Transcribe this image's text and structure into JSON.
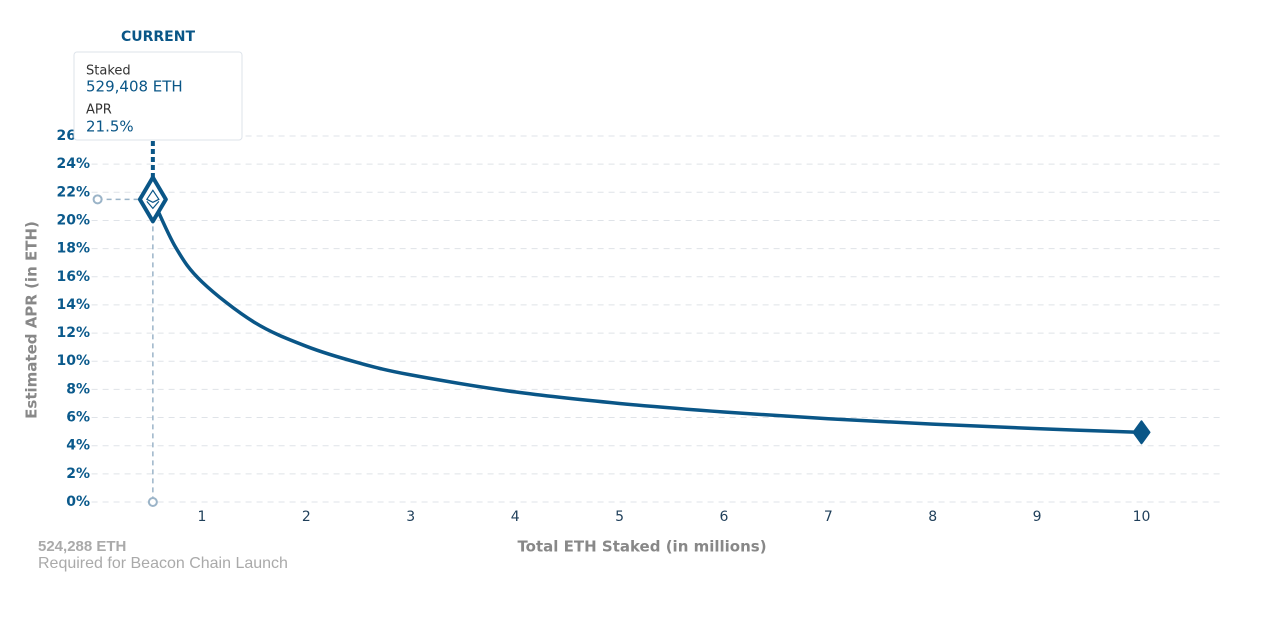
{
  "chart_data": {
    "type": "line",
    "x": [
      0.529408,
      0.75,
      1,
      1.5,
      2,
      2.5,
      3,
      4,
      5,
      6,
      7,
      8,
      9,
      10
    ],
    "values": [
      21.5,
      18.06,
      15.64,
      12.77,
      11.06,
      9.89,
      9.03,
      7.82,
      7.0,
      6.39,
      5.91,
      5.53,
      5.21,
      4.95
    ],
    "color": "#0a5687",
    "xlim": [
      0,
      10.8
    ],
    "xticks": [
      1,
      2,
      3,
      4,
      5,
      6,
      7,
      8,
      9,
      10
    ],
    "ylim": [
      0,
      26
    ],
    "yticks": [
      {
        "value": 0,
        "label": "0%"
      },
      {
        "value": 2,
        "label": "2%"
      },
      {
        "value": 4,
        "label": "4%"
      },
      {
        "value": 6,
        "label": "6%"
      },
      {
        "value": 8,
        "label": "8%"
      },
      {
        "value": 10,
        "label": "10%"
      },
      {
        "value": 12,
        "label": "12%"
      },
      {
        "value": 14,
        "label": "14%"
      },
      {
        "value": 16,
        "label": "16%"
      },
      {
        "value": 18,
        "label": "18%"
      },
      {
        "value": 20,
        "label": "20%"
      },
      {
        "value": 22,
        "label": "22%"
      },
      {
        "value": 24,
        "label": "24%"
      },
      {
        "value": 26,
        "label": "26%"
      }
    ],
    "grid": true,
    "x_label": "Total ETH Staked  (in millions)",
    "y_label": "Estimated APR (in ETH)",
    "current": {
      "title": "CURRENT",
      "staked_label": "Staked",
      "staked": "529,408 ETH",
      "apr_label": "APR",
      "apr": "21.5%"
    },
    "launch": {
      "value": "524,288 ETH",
      "label": "Required for Beacon Chain Launch"
    }
  }
}
